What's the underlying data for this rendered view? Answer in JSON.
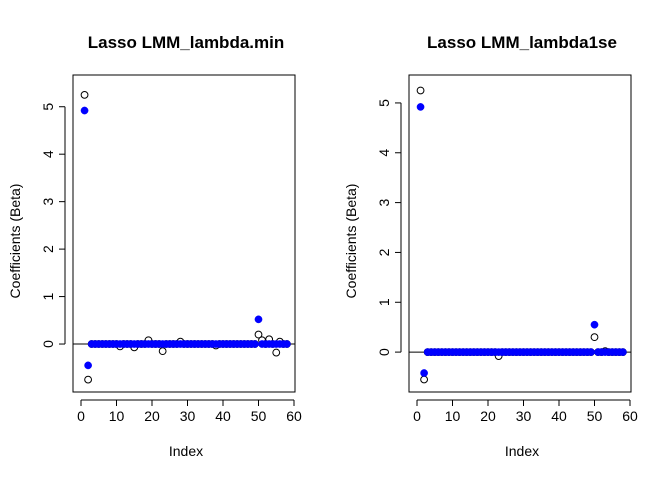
{
  "chart_data": [
    {
      "type": "scatter",
      "title": "Lasso LMM_lambda.min",
      "xlabel": "Index",
      "ylabel": "Coefficients (Beta)",
      "xlim": [
        0,
        60
      ],
      "ylim": [
        -0.8,
        5.5
      ],
      "xticks": [
        "0",
        "10",
        "20",
        "30",
        "40",
        "50",
        "60"
      ],
      "yticks": [
        "0",
        "1",
        "2",
        "3",
        "4",
        "5"
      ],
      "hline_y": 0,
      "series": [
        {
          "marker": "open-circle",
          "color": "#000000",
          "x": [
            1,
            2,
            3,
            4,
            5,
            6,
            7,
            8,
            9,
            10,
            11,
            12,
            13,
            14,
            15,
            16,
            17,
            18,
            19,
            20,
            21,
            22,
            23,
            24,
            25,
            26,
            27,
            28,
            29,
            30,
            31,
            32,
            33,
            34,
            35,
            36,
            37,
            38,
            39,
            40,
            41,
            42,
            43,
            44,
            45,
            46,
            47,
            48,
            49,
            50,
            51,
            52,
            53,
            54,
            55,
            56,
            57,
            58
          ],
          "y": [
            5.25,
            -0.75,
            0,
            0,
            0,
            0,
            0,
            0,
            0,
            0,
            -0.05,
            0,
            0,
            0,
            -0.07,
            0,
            0,
            0,
            0.08,
            0,
            0,
            0,
            -0.15,
            0,
            0,
            0,
            0,
            0.05,
            0,
            0,
            0,
            0,
            0,
            0,
            0,
            0,
            0,
            -0.03,
            0,
            0,
            0,
            0,
            0,
            0,
            0,
            0,
            0,
            0,
            0,
            0.2,
            0.08,
            0,
            0.1,
            0,
            -0.18,
            0.05,
            0,
            0
          ]
        },
        {
          "marker": "filled-circle",
          "color": "#0000ff",
          "x": [
            1,
            2,
            3,
            4,
            5,
            6,
            7,
            8,
            9,
            10,
            11,
            12,
            13,
            14,
            15,
            16,
            17,
            18,
            19,
            20,
            21,
            22,
            23,
            24,
            25,
            26,
            27,
            28,
            29,
            30,
            31,
            32,
            33,
            34,
            35,
            36,
            37,
            38,
            39,
            40,
            41,
            42,
            43,
            44,
            45,
            46,
            47,
            48,
            49,
            50,
            51,
            52,
            53,
            54,
            55,
            56,
            57,
            58
          ],
          "y": [
            4.92,
            -0.45,
            0,
            0,
            0,
            0,
            0,
            0,
            0,
            0,
            0,
            0,
            0,
            0,
            0,
            0,
            0,
            0,
            0,
            0,
            0,
            0,
            0,
            0,
            0,
            0,
            0,
            0,
            0,
            0,
            0,
            0,
            0,
            0,
            0,
            0,
            0,
            0,
            0,
            0,
            0,
            0,
            0,
            0,
            0,
            0,
            0,
            0,
            0,
            0.52,
            0,
            0,
            0,
            0,
            0,
            0,
            0,
            0
          ]
        }
      ]
    },
    {
      "type": "scatter",
      "title": "Lasso LMM_lambda1se",
      "xlabel": "Index",
      "ylabel": "Coefficients (Beta)",
      "xlim": [
        0,
        60
      ],
      "ylim": [
        -0.6,
        5.4
      ],
      "xticks": [
        "0",
        "10",
        "20",
        "30",
        "40",
        "50",
        "60"
      ],
      "yticks": [
        "0",
        "1",
        "2",
        "3",
        "4",
        "5"
      ],
      "hline_y": 0,
      "series": [
        {
          "marker": "open-circle",
          "color": "#000000",
          "x": [
            1,
            2,
            3,
            4,
            5,
            6,
            7,
            8,
            9,
            10,
            11,
            12,
            13,
            14,
            15,
            16,
            17,
            18,
            19,
            20,
            21,
            22,
            23,
            24,
            25,
            26,
            27,
            28,
            29,
            30,
            31,
            32,
            33,
            34,
            35,
            36,
            37,
            38,
            39,
            40,
            41,
            42,
            43,
            44,
            45,
            46,
            47,
            48,
            49,
            50,
            51,
            52,
            53,
            54,
            55,
            56,
            57,
            58
          ],
          "y": [
            5.25,
            -0.55,
            0,
            0,
            0,
            0,
            0,
            0,
            0,
            0,
            0,
            0,
            0,
            0,
            0,
            0,
            0,
            0,
            0,
            0,
            0,
            0,
            -0.08,
            0,
            0,
            0,
            0,
            0,
            0,
            0,
            0,
            0,
            0,
            0,
            0,
            0,
            0,
            0,
            0,
            0,
            0,
            0,
            0,
            0,
            0,
            0,
            0,
            0,
            0,
            0.3,
            0,
            0,
            0.02,
            0,
            0,
            0,
            0,
            0
          ]
        },
        {
          "marker": "filled-circle",
          "color": "#0000ff",
          "x": [
            1,
            2,
            3,
            4,
            5,
            6,
            7,
            8,
            9,
            10,
            11,
            12,
            13,
            14,
            15,
            16,
            17,
            18,
            19,
            20,
            21,
            22,
            23,
            24,
            25,
            26,
            27,
            28,
            29,
            30,
            31,
            32,
            33,
            34,
            35,
            36,
            37,
            38,
            39,
            40,
            41,
            42,
            43,
            44,
            45,
            46,
            47,
            48,
            49,
            50,
            51,
            52,
            53,
            54,
            55,
            56,
            57,
            58
          ],
          "y": [
            4.92,
            -0.42,
            0,
            0,
            0,
            0,
            0,
            0,
            0,
            0,
            0,
            0,
            0,
            0,
            0,
            0,
            0,
            0,
            0,
            0,
            0,
            0,
            0,
            0,
            0,
            0,
            0,
            0,
            0,
            0,
            0,
            0,
            0,
            0,
            0,
            0,
            0,
            0,
            0,
            0,
            0,
            0,
            0,
            0,
            0,
            0,
            0,
            0,
            0,
            0.55,
            0,
            0,
            0,
            0,
            0,
            0,
            0,
            0
          ]
        }
      ]
    }
  ]
}
